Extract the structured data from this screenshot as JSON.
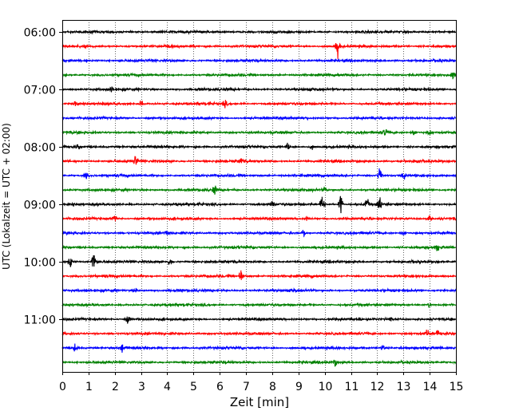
{
  "chart_data": {
    "type": "line",
    "xlabel": "Zeit  [min]",
    "ylabel": "UTC (Lokalzeit = UTC + 02:00)",
    "xlim": [
      0,
      15
    ],
    "x_ticks": [
      0,
      1,
      2,
      3,
      4,
      5,
      6,
      7,
      8,
      9,
      10,
      11,
      12,
      13,
      14,
      15
    ],
    "y_tick_labels": [
      "06:00",
      "07:00",
      "08:00",
      "09:00",
      "10:00",
      "11:00"
    ],
    "grid": "vertical dotted lines at each minute",
    "row_interval_minutes": 15,
    "row_colors": [
      "#000000",
      "#ff0000",
      "#0000ff",
      "#008000"
    ],
    "series": [
      {
        "start": "06:00",
        "events": []
      },
      {
        "start": "06:15",
        "events": [
          {
            "t": 10.5,
            "amp": 1.6
          }
        ]
      },
      {
        "start": "06:30",
        "events": []
      },
      {
        "start": "06:45",
        "events": [
          {
            "t": 14.9,
            "amp": 0.8
          }
        ]
      },
      {
        "start": "07:00",
        "events": [
          {
            "t": 1.9,
            "amp": 0.6
          }
        ]
      },
      {
        "start": "07:15",
        "events": [
          {
            "t": 0.5,
            "amp": 0.4
          },
          {
            "t": 3.0,
            "amp": 0.4
          },
          {
            "t": 6.2,
            "amp": 0.5
          }
        ]
      },
      {
        "start": "07:30",
        "events": []
      },
      {
        "start": "07:45",
        "events": [
          {
            "t": 12.3,
            "amp": 0.5
          },
          {
            "t": 13.4,
            "amp": 0.5
          },
          {
            "t": 14.0,
            "amp": 0.5
          }
        ]
      },
      {
        "start": "08:00",
        "events": [
          {
            "t": 0.6,
            "amp": 0.4
          },
          {
            "t": 8.6,
            "amp": 0.5
          },
          {
            "t": 9.5,
            "amp": 0.4
          }
        ]
      },
      {
        "start": "08:15",
        "events": [
          {
            "t": 2.8,
            "amp": 1.0
          },
          {
            "t": 6.8,
            "amp": 0.4
          },
          {
            "t": 13.5,
            "amp": 0.4
          }
        ]
      },
      {
        "start": "08:30",
        "events": [
          {
            "t": 0.9,
            "amp": 0.5
          },
          {
            "t": 12.1,
            "amp": 1.3
          },
          {
            "t": 13.0,
            "amp": 0.6
          }
        ]
      },
      {
        "start": "08:45",
        "events": [
          {
            "t": 5.8,
            "amp": 0.8
          },
          {
            "t": 10.0,
            "amp": 0.4
          }
        ]
      },
      {
        "start": "09:00",
        "events": [
          {
            "t": 9.9,
            "amp": 1.4
          },
          {
            "t": 10.6,
            "amp": 1.8
          },
          {
            "t": 11.6,
            "amp": 1.0
          },
          {
            "t": 12.1,
            "amp": 1.6
          },
          {
            "t": 8.0,
            "amp": 0.6
          }
        ]
      },
      {
        "start": "09:15",
        "events": [
          {
            "t": 2.0,
            "amp": 0.5
          },
          {
            "t": 9.3,
            "amp": 0.4
          },
          {
            "t": 14.0,
            "amp": 0.4
          }
        ]
      },
      {
        "start": "09:30",
        "events": [
          {
            "t": 4.0,
            "amp": 0.4
          },
          {
            "t": 9.2,
            "amp": 0.6
          },
          {
            "t": 13.0,
            "amp": 0.4
          }
        ]
      },
      {
        "start": "09:45",
        "events": [
          {
            "t": 14.3,
            "amp": 0.5
          }
        ]
      },
      {
        "start": "10:00",
        "events": [
          {
            "t": 0.3,
            "amp": 1.0
          },
          {
            "t": 1.2,
            "amp": 2.0
          },
          {
            "t": 4.1,
            "amp": 0.6
          }
        ]
      },
      {
        "start": "10:15",
        "events": [
          {
            "t": 6.8,
            "amp": 1.0
          }
        ]
      },
      {
        "start": "10:30",
        "events": [
          {
            "t": 2.8,
            "amp": 0.4
          },
          {
            "t": 8.8,
            "amp": 0.4
          }
        ]
      },
      {
        "start": "10:45",
        "events": [
          {
            "t": 14.0,
            "amp": 0.4
          }
        ]
      },
      {
        "start": "11:00",
        "events": [
          {
            "t": 2.5,
            "amp": 0.6
          },
          {
            "t": 12.5,
            "amp": 0.4
          }
        ]
      },
      {
        "start": "11:15",
        "events": [
          {
            "t": 13.9,
            "amp": 0.6
          },
          {
            "t": 14.3,
            "amp": 0.5
          }
        ]
      },
      {
        "start": "11:30",
        "events": [
          {
            "t": 0.5,
            "amp": 0.7
          },
          {
            "t": 2.3,
            "amp": 0.8
          },
          {
            "t": 12.2,
            "amp": 0.5
          }
        ]
      },
      {
        "start": "11:45",
        "events": [
          {
            "t": 10.4,
            "amp": 0.7
          }
        ]
      }
    ]
  }
}
